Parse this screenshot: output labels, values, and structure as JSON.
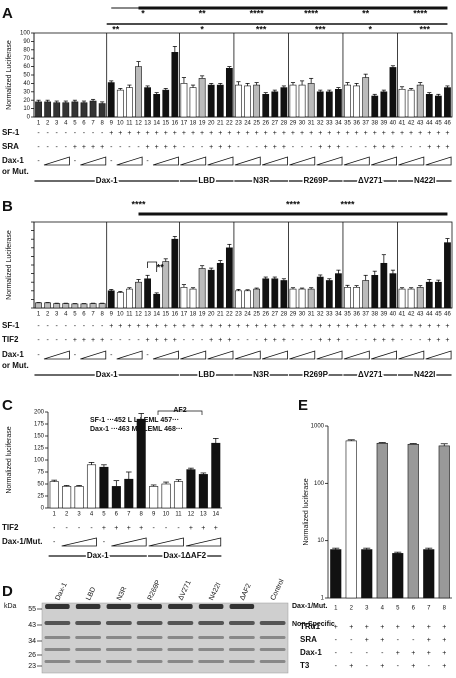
{
  "chart_data": [
    {
      "type": "bar",
      "panel_label": "A",
      "y_label": "Normalized Luciferase",
      "categories": [
        "1",
        "2",
        "3",
        "4",
        "5",
        "6",
        "7",
        "8",
        "9",
        "10",
        "11",
        "12",
        "13",
        "14",
        "15",
        "16",
        "17",
        "18",
        "19",
        "20",
        "21",
        "22",
        "23",
        "24",
        "25",
        "26",
        "27",
        "28",
        "29",
        "30",
        "31",
        "32",
        "33",
        "34",
        "35",
        "36",
        "37",
        "38",
        "39",
        "40",
        "41",
        "42",
        "43",
        "44",
        "45",
        "46"
      ],
      "values": [
        18,
        18,
        17,
        17,
        18,
        17,
        19,
        16,
        41,
        32,
        35,
        60,
        35,
        27,
        32,
        77,
        40,
        35,
        46,
        38,
        38,
        58,
        38,
        37,
        38,
        27,
        30,
        35,
        38,
        38,
        40,
        30,
        30,
        33,
        38,
        37,
        47,
        25,
        30,
        59,
        33,
        32,
        38,
        27,
        25,
        35
      ],
      "errors": [
        2,
        2,
        2,
        2,
        2,
        2,
        2,
        2,
        2,
        2,
        3,
        6,
        2,
        2,
        2,
        7,
        7,
        3,
        3,
        2,
        2,
        2,
        4,
        3,
        3,
        2,
        2,
        2,
        3,
        5,
        6,
        2,
        2,
        2,
        3,
        3,
        4,
        2,
        2,
        2,
        3,
        2,
        3,
        2,
        2,
        2
      ],
      "colors": [
        "#333",
        "#333",
        "#333",
        "#333",
        "#333",
        "#333",
        "#333",
        "#333",
        "#111",
        "#fff",
        "#fff",
        "#bbb",
        "#111",
        "#111",
        "#111",
        "#111",
        "#fff",
        "#fff",
        "#bbb",
        "#111",
        "#111",
        "#111",
        "#fff",
        "#fff",
        "#bbb",
        "#111",
        "#111",
        "#111",
        "#fff",
        "#fff",
        "#bbb",
        "#111",
        "#111",
        "#111",
        "#fff",
        "#fff",
        "#bbb",
        "#111",
        "#111",
        "#111",
        "#fff",
        "#fff",
        "#bbb",
        "#111",
        "#111",
        "#111"
      ],
      "ylim": [
        0,
        100
      ],
      "yticks": [
        0,
        10,
        20,
        30,
        40,
        50,
        60,
        70,
        80,
        90,
        100
      ],
      "tick_labels": true,
      "log_y": false,
      "rows": [
        {
          "label": "SF-1",
          "values": [
            "-",
            "-",
            "-",
            "-",
            "-",
            "-",
            "-",
            "-",
            "+",
            "+",
            "+",
            "+",
            "+",
            "+",
            "+",
            "+",
            "+",
            "+",
            "+",
            "+",
            "+",
            "+",
            "+",
            "+",
            "+",
            "+",
            "+",
            "+",
            "+",
            "+",
            "+",
            "+",
            "+",
            "+",
            "+",
            "+",
            "+",
            "+",
            "+",
            "+",
            "+",
            "+",
            "+",
            "+",
            "+",
            "+"
          ]
        },
        {
          "label": "SRA",
          "values": [
            "-",
            "-",
            "-",
            "-",
            "+",
            "+",
            "+",
            "+",
            "-",
            "-",
            "-",
            "-",
            "+",
            "+",
            "+",
            "+",
            "-",
            "-",
            "-",
            "+",
            "+",
            "+",
            "-",
            "-",
            "-",
            "+",
            "+",
            "+",
            "-",
            "-",
            "-",
            "+",
            "+",
            "+",
            "-",
            "-",
            "-",
            "+",
            "+",
            "+",
            "-",
            "-",
            "-",
            "+",
            "+",
            "+"
          ]
        },
        {
          "label": [
            "Dax-1",
            "or Mut."
          ],
          "values": [
            "-",
            null,
            null,
            null,
            "-",
            null,
            null,
            null,
            "-",
            null,
            null,
            null,
            "-",
            null,
            null,
            null,
            null,
            null,
            null,
            null,
            null,
            null,
            null,
            null,
            null,
            null,
            null,
            null,
            null,
            null,
            null,
            null,
            null,
            null,
            null,
            null,
            null,
            null,
            null,
            null,
            null,
            null,
            null,
            null,
            null,
            null
          ]
        }
      ],
      "groups": [
        "Dax-1",
        "LBD",
        "N3R",
        "R269P",
        "ΔV271",
        "N422I"
      ],
      "annotations": [
        "*",
        "**",
        "****",
        "****",
        "**",
        "****",
        "**",
        "*",
        "***",
        "***",
        "*",
        "***"
      ]
    },
    {
      "type": "bar",
      "panel_label": "B",
      "y_label": "Normalized Luciferase",
      "categories": [
        "1",
        "2",
        "3",
        "4",
        "5",
        "6",
        "7",
        "8",
        "9",
        "10",
        "11",
        "12",
        "13",
        "14",
        "15",
        "16",
        "17",
        "18",
        "19",
        "20",
        "21",
        "22",
        "23",
        "24",
        "25",
        "26",
        "27",
        "28",
        "29",
        "30",
        "31",
        "32",
        "33",
        "34",
        "35",
        "36",
        "37",
        "38",
        "39",
        "40",
        "41",
        "42",
        "43",
        "44",
        "45",
        "46"
      ],
      "values": [
        15,
        15,
        13,
        13,
        12,
        12,
        13,
        13,
        50,
        45,
        55,
        75,
        85,
        40,
        135,
        200,
        60,
        55,
        115,
        110,
        130,
        175,
        50,
        50,
        55,
        85,
        85,
        80,
        55,
        55,
        55,
        90,
        80,
        100,
        60,
        60,
        80,
        95,
        130,
        100,
        55,
        55,
        60,
        75,
        75,
        190
      ],
      "errors": [
        1,
        1,
        1,
        1,
        1,
        1,
        1,
        1,
        4,
        3,
        4,
        8,
        10,
        4,
        8,
        8,
        8,
        4,
        8,
        6,
        8,
        10,
        4,
        3,
        3,
        5,
        5,
        5,
        4,
        3,
        4,
        6,
        5,
        10,
        6,
        5,
        15,
        12,
        25,
        10,
        4,
        4,
        5,
        8,
        6,
        12
      ],
      "colors": [
        "#bbb",
        "#bbb",
        "#bbb",
        "#bbb",
        "#bbb",
        "#bbb",
        "#bbb",
        "#bbb",
        "#111",
        "#fff",
        "#fff",
        "#bbb",
        "#111",
        "#111",
        "#bbb",
        "#111",
        "#fff",
        "#fff",
        "#bbb",
        "#111",
        "#111",
        "#111",
        "#fff",
        "#fff",
        "#bbb",
        "#111",
        "#111",
        "#111",
        "#fff",
        "#fff",
        "#bbb",
        "#111",
        "#111",
        "#111",
        "#fff",
        "#fff",
        "#bbb",
        "#111",
        "#111",
        "#111",
        "#fff",
        "#fff",
        "#bbb",
        "#111",
        "#111",
        "#111"
      ],
      "ylim": [
        0,
        250
      ],
      "yticks": [
        0,
        25,
        50,
        75,
        100,
        125,
        150,
        175,
        200,
        225,
        250
      ],
      "tick_labels": false,
      "log_y": false,
      "rows": [
        {
          "label": "SF-1",
          "values": [
            "-",
            "-",
            "-",
            "-",
            "-",
            "-",
            "-",
            "-",
            "+",
            "+",
            "+",
            "+",
            "+",
            "+",
            "+",
            "+",
            "+",
            "+",
            "+",
            "+",
            "+",
            "+",
            "+",
            "+",
            "+",
            "+",
            "+",
            "+",
            "+",
            "+",
            "+",
            "+",
            "+",
            "+",
            "+",
            "+",
            "+",
            "+",
            "+",
            "+",
            "+",
            "+",
            "+",
            "+",
            "+",
            "+"
          ]
        },
        {
          "label": "TIF2",
          "values": [
            "-",
            "-",
            "-",
            "-",
            "+",
            "+",
            "+",
            "+",
            "-",
            "-",
            "-",
            "-",
            "+",
            "+",
            "+",
            "+",
            "-",
            "-",
            "-",
            "+",
            "+",
            "+",
            "-",
            "-",
            "-",
            "+",
            "+",
            "+",
            "-",
            "-",
            "-",
            "+",
            "+",
            "+",
            "-",
            "-",
            "-",
            "+",
            "+",
            "+",
            "-",
            "-",
            "-",
            "+",
            "+",
            "+"
          ]
        },
        {
          "label": [
            "Dax-1",
            "or Mut."
          ],
          "values": [
            "-",
            null,
            null,
            null,
            "-",
            null,
            null,
            null,
            "-",
            null,
            null,
            null,
            "-",
            null,
            null,
            null,
            null,
            null,
            null,
            null,
            null,
            null,
            null,
            null,
            null,
            null,
            null,
            null,
            null,
            null,
            null,
            null,
            null,
            null,
            null,
            null,
            null,
            null,
            null,
            null,
            null,
            null,
            null,
            null,
            null,
            null
          ]
        }
      ],
      "groups": [
        "Dax-1",
        "LBD",
        "N3R",
        "R269P",
        "ΔV271",
        "N422I"
      ],
      "annotations": [
        "****",
        "**",
        "****",
        "****"
      ]
    },
    {
      "type": "bar",
      "panel_label": "C",
      "y_label": "Normalized luciferase",
      "categories": [
        "1",
        "2",
        "3",
        "4",
        "5",
        "6",
        "7",
        "8",
        "9",
        "10",
        "11",
        "12",
        "13",
        "14"
      ],
      "values": [
        55,
        45,
        45,
        90,
        85,
        45,
        60,
        185,
        45,
        50,
        55,
        80,
        70,
        135
      ],
      "errors": [
        3,
        2,
        2,
        5,
        5,
        12,
        15,
        12,
        3,
        4,
        4,
        3,
        3,
        10
      ],
      "colors": [
        "#fff",
        "#fff",
        "#fff",
        "#fff",
        "#111",
        "#111",
        "#111",
        "#111",
        "#fff",
        "#fff",
        "#fff",
        "#111",
        "#111",
        "#111"
      ],
      "ylim": [
        0,
        200
      ],
      "yticks": [
        0,
        25,
        50,
        75,
        100,
        125,
        150,
        175,
        200
      ],
      "tick_labels": true,
      "log_y": false,
      "rows": [
        {
          "label": "TIF2",
          "values": [
            "-",
            "-",
            "-",
            "-",
            "+",
            "+",
            "+",
            "+",
            "-",
            "-",
            "-",
            "+",
            "+",
            "+"
          ]
        },
        {
          "label": "Dax-1/Mut.",
          "values": [
            "-",
            null,
            null,
            null,
            "-",
            null,
            null,
            null,
            null,
            null,
            null,
            null,
            null,
            null
          ]
        }
      ],
      "groups": [
        "Dax-1",
        "Dax-1ΔAF2"
      ],
      "annotations": [
        "*"
      ],
      "inset": {
        "title": "AF2",
        "lines": [
          "SF-1 ···452 L L I EML 457···",
          "Dax-1 ···463 MMLEML 468···"
        ]
      }
    },
    {
      "type": "bar",
      "panel_label": "E",
      "y_label": "Normalized luciferase",
      "categories": [
        "1",
        "2",
        "3",
        "4",
        "5",
        "6",
        "7",
        "8"
      ],
      "values": [
        7,
        550,
        7,
        500,
        6,
        480,
        7,
        450
      ],
      "errors": [
        0.4,
        25,
        0.4,
        15,
        0.3,
        15,
        0.4,
        40
      ],
      "colors": [
        "#111",
        "#fff",
        "#111",
        "#999",
        "#111",
        "#999",
        "#111",
        "#999"
      ],
      "ylim": [
        1,
        1000
      ],
      "yticks": [
        1,
        10,
        100,
        1000
      ],
      "tick_labels": true,
      "log_y": true,
      "rows": [
        {
          "label": "TRα1",
          "values": [
            "+",
            "+",
            "+",
            "+",
            "+",
            "+",
            "+",
            "+"
          ]
        },
        {
          "label": "SRA",
          "values": [
            "-",
            "-",
            "+",
            "+",
            "-",
            "-",
            "+",
            "+"
          ]
        },
        {
          "label": "Dax-1",
          "values": [
            "-",
            "-",
            "-",
            "-",
            "+",
            "+",
            "+",
            "+"
          ]
        },
        {
          "label": "T3",
          "values": [
            "-",
            "+",
            "-",
            "+",
            "-",
            "+",
            "-",
            "+"
          ]
        }
      ]
    }
  ],
  "blot": {
    "panel_label": "D",
    "unit": "kDa",
    "markers": [
      "55",
      "43",
      "34",
      "26",
      "23"
    ],
    "lanes": [
      "Dax-1",
      "LBD",
      "N3R",
      "R269P",
      "ΔV271",
      "N422I",
      "ΔAF2",
      "Control"
    ],
    "bands": [
      "Dax-1/Mut.",
      "Non-Specific"
    ]
  }
}
